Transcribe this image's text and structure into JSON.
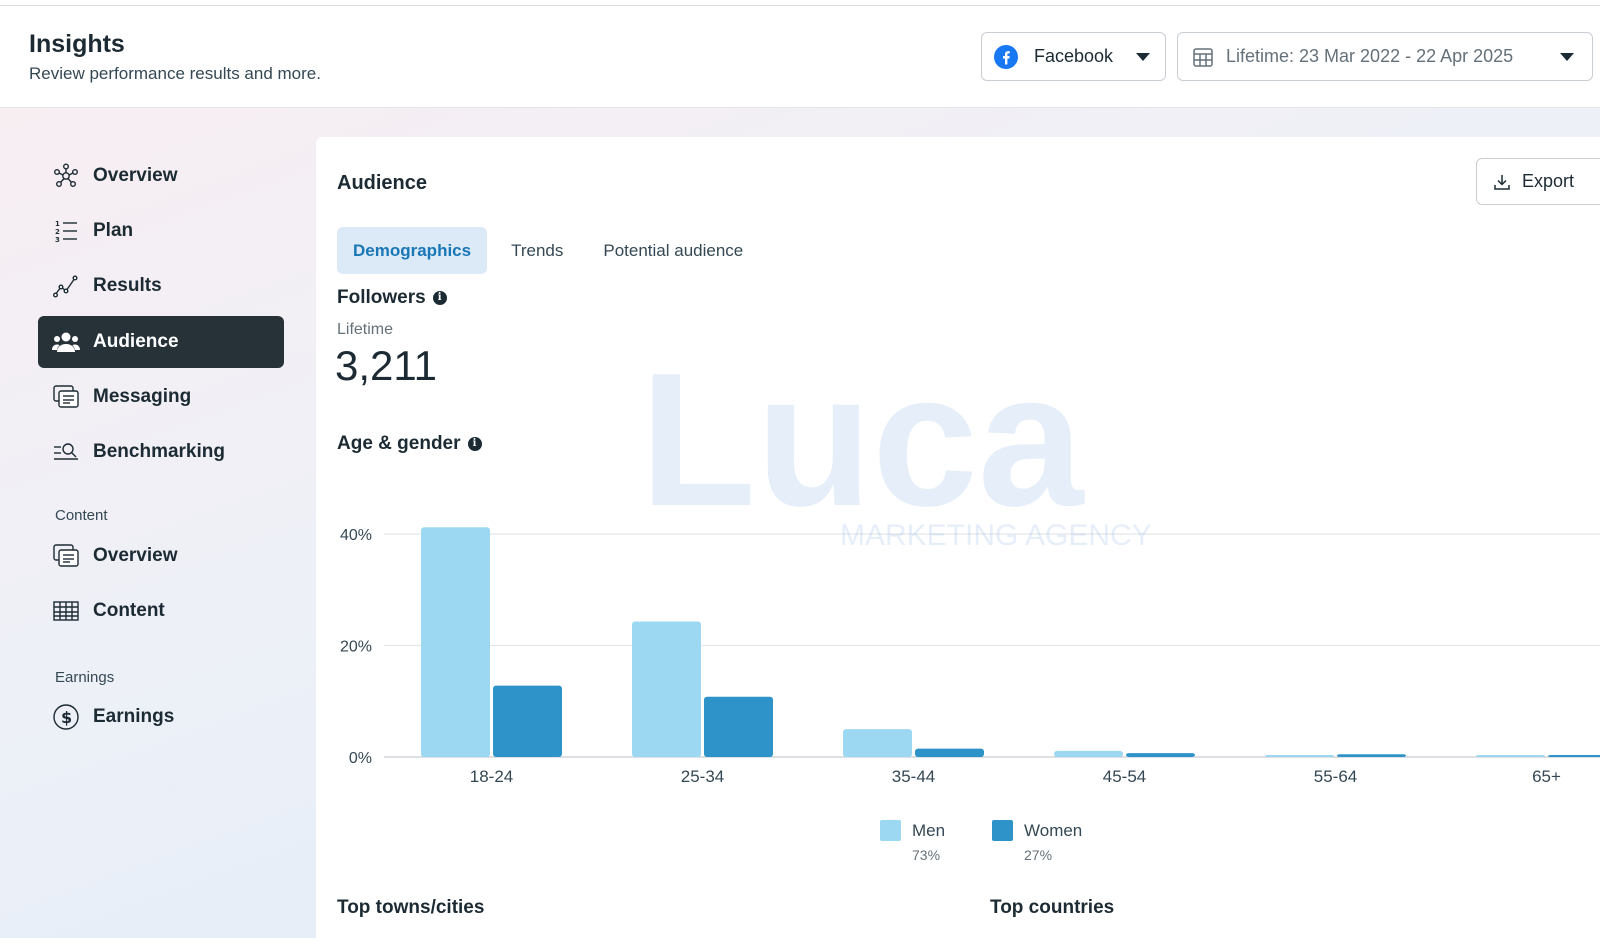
{
  "header": {
    "title": "Insights",
    "subtitle": "Review performance results and more.",
    "platform_label": "Facebook",
    "date_range_label": "Lifetime: 23 Mar 2022 - 22 Apr 2025"
  },
  "sidebar": {
    "items": [
      {
        "label": "Overview",
        "icon": "network-icon"
      },
      {
        "label": "Plan",
        "icon": "numbered-list-icon"
      },
      {
        "label": "Results",
        "icon": "trend-line-icon"
      },
      {
        "label": "Audience",
        "icon": "people-icon",
        "active": true
      },
      {
        "label": "Messaging",
        "icon": "messages-icon"
      },
      {
        "label": "Benchmarking",
        "icon": "magnifier-list-icon"
      }
    ],
    "content_section_label": "Content",
    "content_items": [
      {
        "label": "Overview",
        "icon": "messages-icon"
      },
      {
        "label": "Content",
        "icon": "table-icon"
      }
    ],
    "earnings_section_label": "Earnings",
    "earnings_items": [
      {
        "label": "Earnings",
        "icon": "dollar-circle-icon"
      }
    ]
  },
  "main": {
    "title": "Audience",
    "export_label": "Export",
    "tabs": [
      {
        "label": "Demographics",
        "active": true
      },
      {
        "label": "Trends"
      },
      {
        "label": "Potential audience"
      }
    ],
    "followers_label": "Followers",
    "followers_period": "Lifetime",
    "followers_value": "3,211",
    "age_gender_label": "Age & gender",
    "top_cities_label": "Top towns/cities",
    "top_countries_label": "Top countries"
  },
  "legend": {
    "men_label": "Men",
    "men_pct": "73%",
    "women_label": "Women",
    "women_pct": "27%"
  },
  "watermark_text": {
    "logo": "Luca",
    "tagline": "MARKETING AGENCY"
  },
  "colors": {
    "men": "#9dd8f3",
    "women": "#2e93c9",
    "active_nav": "#263238",
    "tab_active_bg": "#dce9f7"
  },
  "chart_data": {
    "type": "bar",
    "categories": [
      "18-24",
      "25-34",
      "35-44",
      "45-54",
      "55-64",
      "65+"
    ],
    "series": [
      {
        "name": "Men",
        "values": [
          41.2,
          24.3,
          5.0,
          1.1,
          0.3,
          0.3
        ]
      },
      {
        "name": "Women",
        "values": [
          12.8,
          10.8,
          1.5,
          0.7,
          0.5,
          0.3
        ]
      }
    ],
    "yticks": [
      "40%",
      "20%",
      "0%"
    ],
    "ylim": [
      0,
      40
    ],
    "grid": true,
    "legend_position": "bottom"
  }
}
